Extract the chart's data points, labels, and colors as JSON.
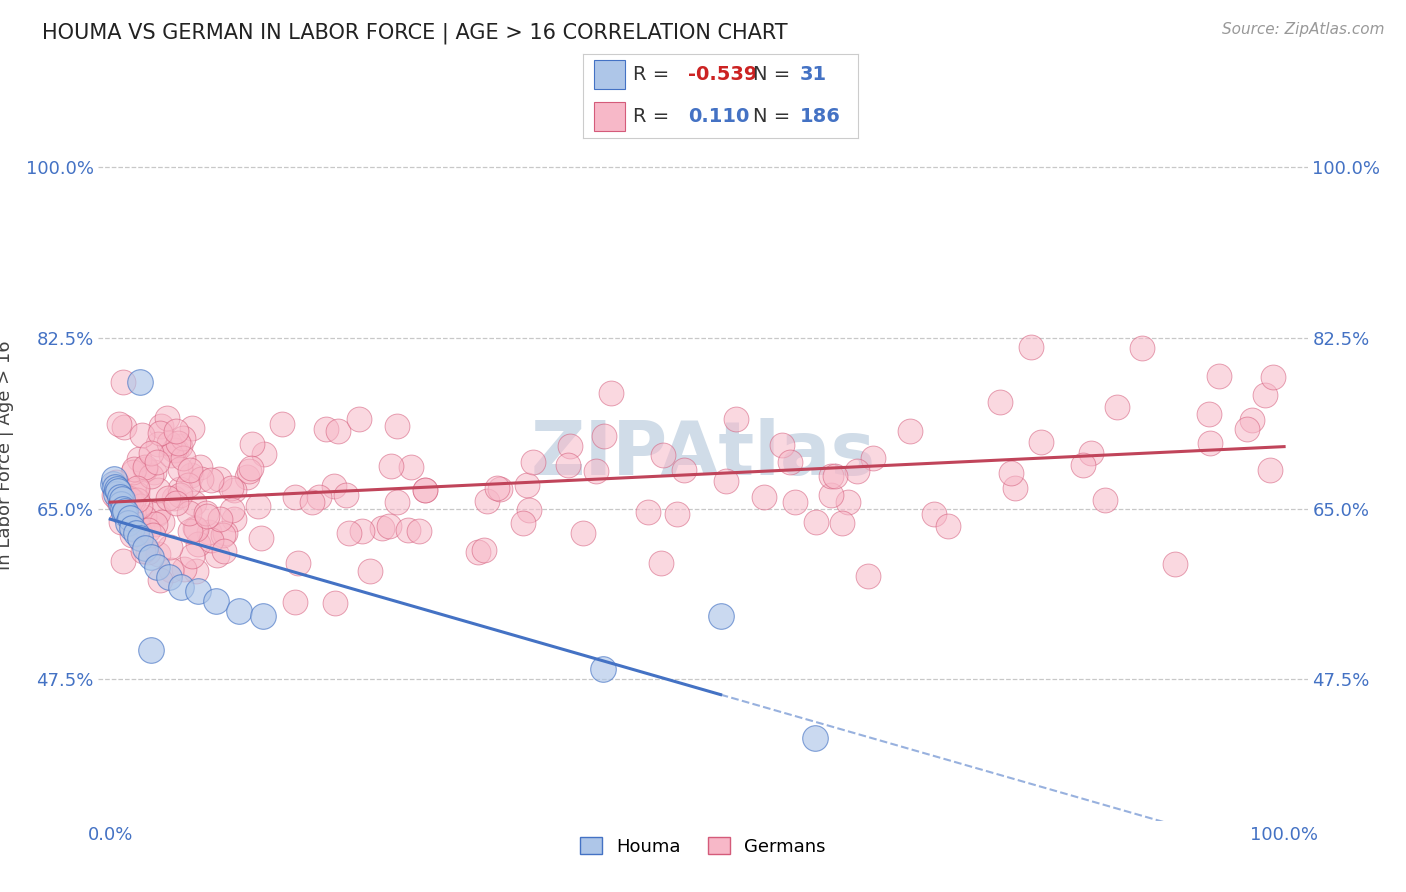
{
  "title": "HOUMA VS GERMAN IN LABOR FORCE | AGE > 16 CORRELATION CHART",
  "source": "Source: ZipAtlas.com",
  "ylabel": "In Labor Force | Age > 16",
  "xlabel_houma": "Houma",
  "xlabel_german": "Germans",
  "legend_houma_r": "-0.539",
  "legend_houma_n": "31",
  "legend_german_r": "0.110",
  "legend_german_n": "186",
  "houma_face_color": "#aec6e8",
  "houma_edge_color": "#4472c4",
  "german_face_color": "#f7b8c8",
  "german_edge_color": "#d45b7a",
  "houma_line_color": "#4472c4",
  "german_line_color": "#c0445a",
  "grid_color": "#c8c8c8",
  "watermark_color": "#d0dce8",
  "yticks": [
    0.475,
    0.65,
    0.825,
    1.0
  ],
  "ytick_labels": [
    "47.5%",
    "65.0%",
    "82.5%",
    "100.0%"
  ],
  "ylim": [
    0.33,
    1.08
  ],
  "xlim": [
    -0.01,
    1.02
  ],
  "title_fontsize": 15,
  "tick_fontsize": 13,
  "legend_fontsize": 14,
  "source_fontsize": 11
}
